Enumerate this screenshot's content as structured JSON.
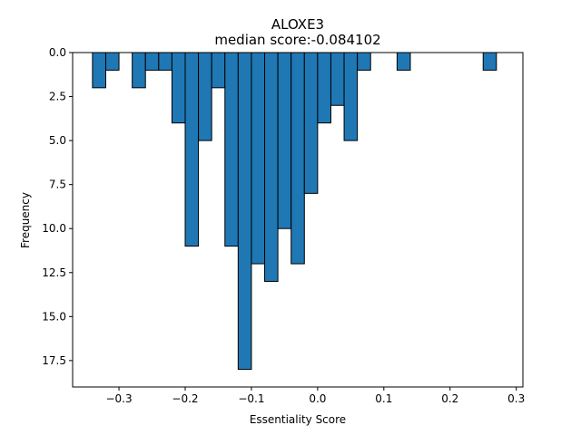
{
  "chart_data": {
    "type": "bar",
    "orientation": "histogram-inverted-y",
    "title": "ALOXE3",
    "subtitle": "median score:-0.084102",
    "xlabel": "Essentiality Score",
    "ylabel": "Frequency",
    "xlim": [
      -0.37,
      0.31
    ],
    "ylim": [
      0,
      19
    ],
    "y_inverted": true,
    "bin_width": 0.02,
    "bar_color": "#1f77b4",
    "edge_color": "#000000",
    "bins": [
      {
        "left": -0.34,
        "count": 2
      },
      {
        "left": -0.32,
        "count": 1
      },
      {
        "left": -0.28,
        "count": 2
      },
      {
        "left": -0.26,
        "count": 1
      },
      {
        "left": -0.24,
        "count": 1
      },
      {
        "left": -0.22,
        "count": 4
      },
      {
        "left": -0.2,
        "count": 11
      },
      {
        "left": -0.18,
        "count": 5
      },
      {
        "left": -0.16,
        "count": 2
      },
      {
        "left": -0.14,
        "count": 11
      },
      {
        "left": -0.12,
        "count": 18
      },
      {
        "left": -0.1,
        "count": 12
      },
      {
        "left": -0.08,
        "count": 13
      },
      {
        "left": -0.06,
        "count": 10
      },
      {
        "left": -0.04,
        "count": 12
      },
      {
        "left": -0.02,
        "count": 8
      },
      {
        "left": 0.0,
        "count": 4
      },
      {
        "left": 0.02,
        "count": 3
      },
      {
        "left": 0.04,
        "count": 5
      },
      {
        "left": 0.06,
        "count": 1
      },
      {
        "left": 0.12,
        "count": 1
      },
      {
        "left": 0.25,
        "count": 1
      }
    ],
    "x_ticks": [
      {
        "value": -0.3,
        "label": "−0.3"
      },
      {
        "value": -0.2,
        "label": "−0.2"
      },
      {
        "value": -0.1,
        "label": "−0.1"
      },
      {
        "value": 0.0,
        "label": "0.0"
      },
      {
        "value": 0.1,
        "label": "0.1"
      },
      {
        "value": 0.2,
        "label": "0.2"
      },
      {
        "value": 0.3,
        "label": "0.3"
      }
    ],
    "y_ticks": [
      {
        "value": 0,
        "label": "0.0"
      },
      {
        "value": 2.5,
        "label": "2.5"
      },
      {
        "value": 5,
        "label": "5.0"
      },
      {
        "value": 7.5,
        "label": "7.5"
      },
      {
        "value": 10,
        "label": "10.0"
      },
      {
        "value": 12.5,
        "label": "12.5"
      },
      {
        "value": 15,
        "label": "15.0"
      },
      {
        "value": 17.5,
        "label": "17.5"
      }
    ],
    "grid": false,
    "legend": "none"
  }
}
